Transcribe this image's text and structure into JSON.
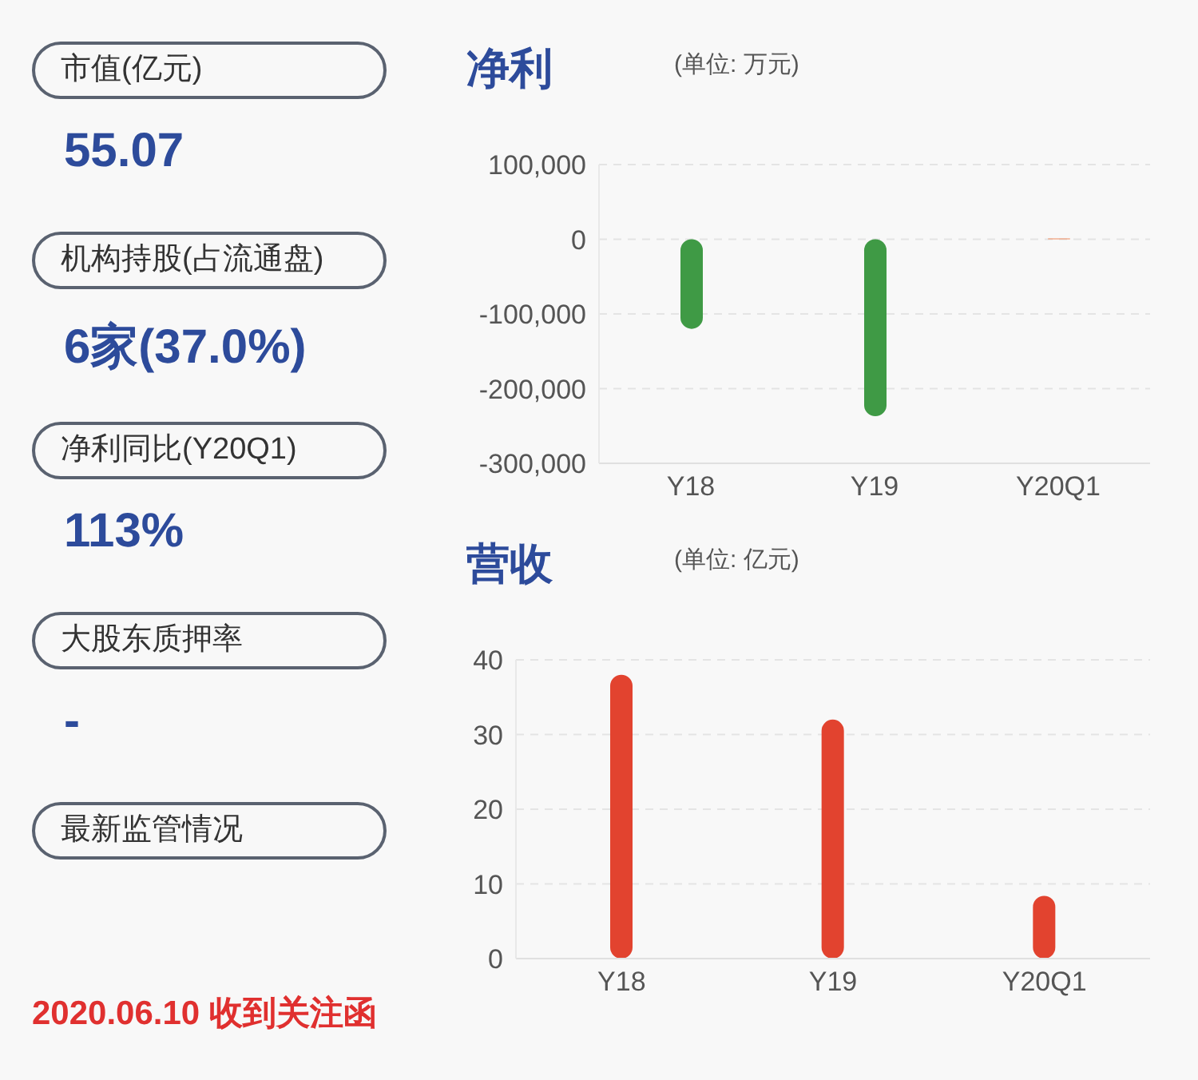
{
  "chart_data": [
    {
      "type": "other",
      "annotations": [
        "市值(亿元)",
        "55.07",
        "机构持股(占流通盘)",
        "6家(37.0%)",
        "净利同比(Y20Q1)",
        "113%",
        "大股东质押率",
        "-",
        "最新监管情况",
        "2020.06.10 收到关注函"
      ]
    },
    {
      "type": "bar",
      "title": "净利",
      "subtitle": "(单位: 万元)",
      "categories": [
        "Y18",
        "Y19",
        "Y20Q1"
      ],
      "values": [
        -120000,
        -237000,
        1000
      ],
      "colors": [
        "#3f9a45",
        "#3f9a45",
        "#f08a5d"
      ],
      "ylim": [
        -300000,
        100000
      ],
      "yticks": [
        {
          "value": -300000,
          "label": "-300,000"
        },
        {
          "value": -200000,
          "label": "-200,000"
        },
        {
          "value": -100000,
          "label": "-100,000"
        },
        0,
        {
          "value": 100000,
          "label": "100,000"
        }
      ],
      "grid": "y"
    },
    {
      "type": "bar",
      "title": "营收",
      "subtitle": "(单位: 亿元)",
      "categories": [
        "Y18",
        "Y19",
        "Y20Q1"
      ],
      "values": [
        38,
        32,
        8.4
      ],
      "colors": [
        "#e2432f",
        "#e2432f",
        "#e2432f"
      ],
      "ylim": [
        0,
        40
      ],
      "yticks": [
        0,
        10,
        20,
        30,
        40
      ],
      "grid": "y"
    }
  ]
}
